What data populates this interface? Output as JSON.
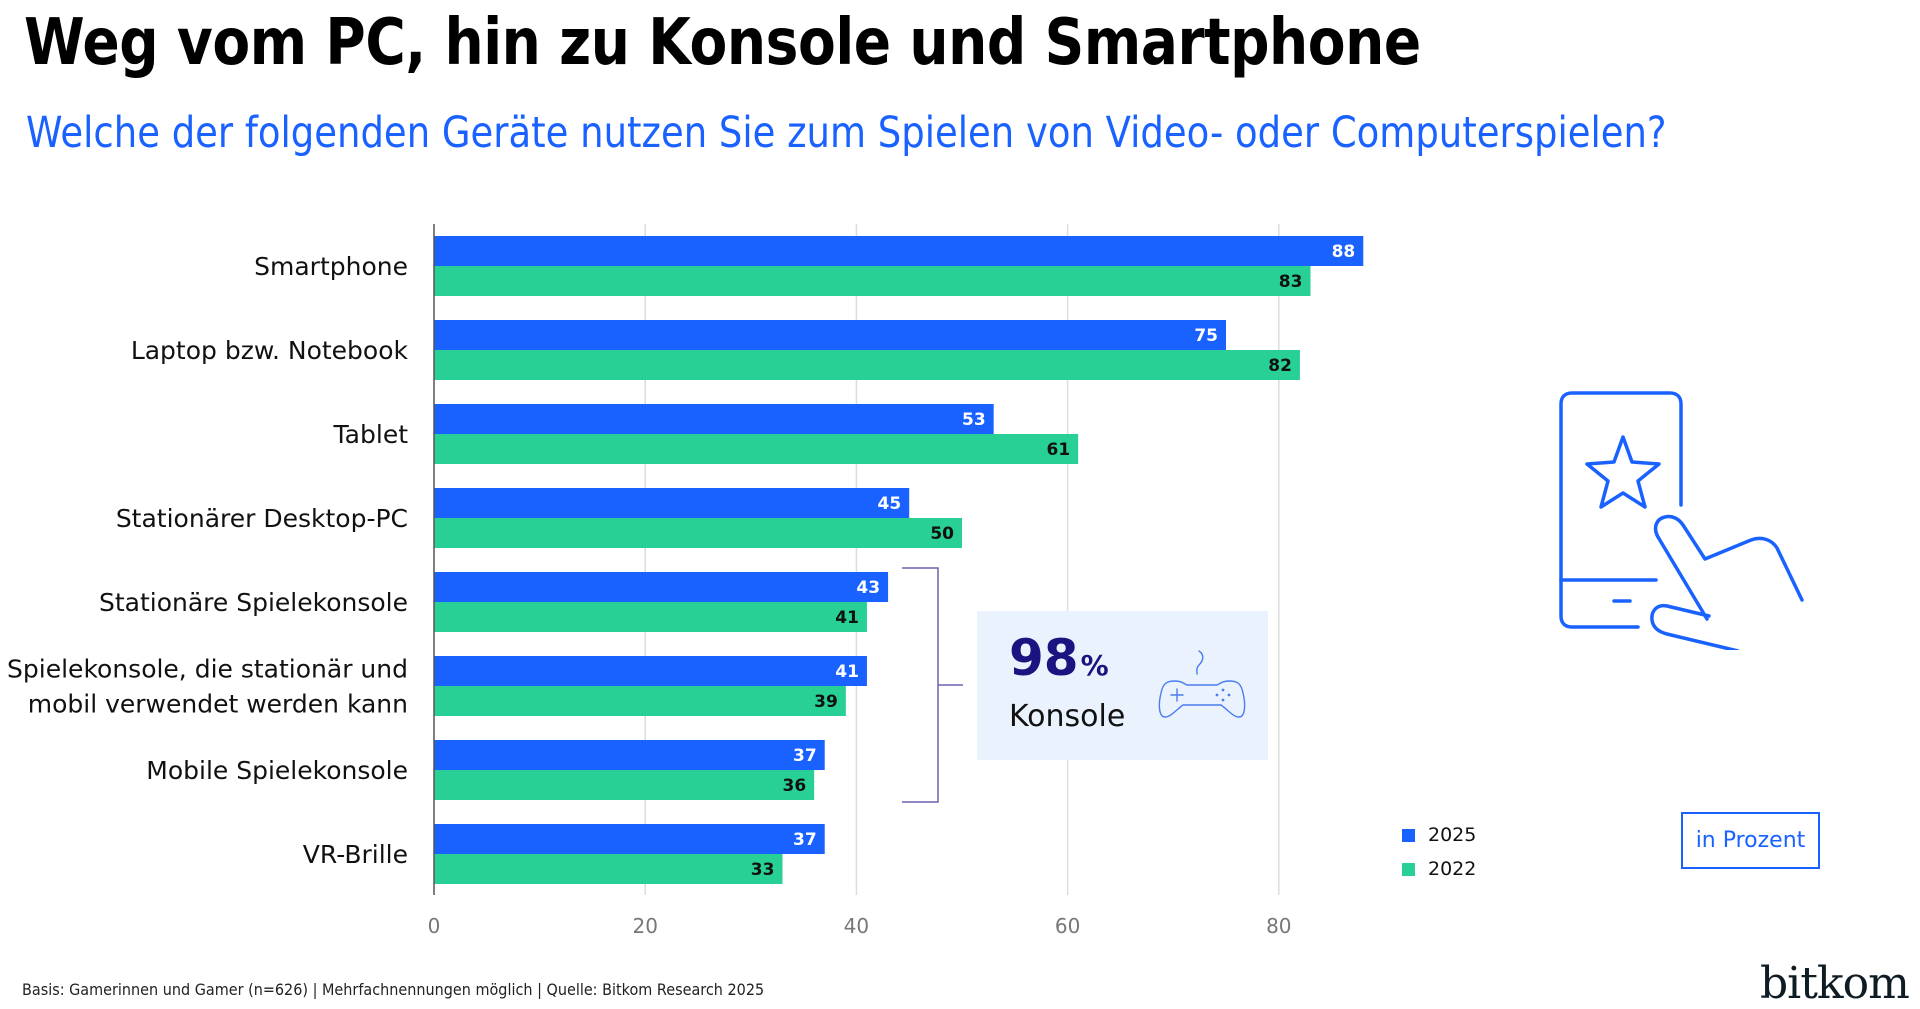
{
  "header": {
    "title": "Weg vom PC, hin zu Konsole und Smartphone",
    "subtitle": "Welche der folgenden Geräte nutzen Sie zum Spielen von Video- oder Computerspielen?"
  },
  "colors": {
    "series_2025": "#1a62ff",
    "series_2022": "#29d095",
    "accent": "#1a62ff",
    "highlight_dark": "#1a1380",
    "bracket": "#6b64b0",
    "callout_bg": "#eaf3fd",
    "gridline": "#dddddd"
  },
  "chart_data": {
    "type": "bar",
    "orientation": "horizontal",
    "title": "Weg vom PC, hin zu Konsole und Smartphone",
    "subtitle": "Welche der folgenden Geräte nutzen Sie zum Spielen von Video- oder Computerspielen?",
    "categories": [
      [
        "Smartphone"
      ],
      [
        "Laptop bzw. Notebook"
      ],
      [
        "Tablet"
      ],
      [
        "Stationärer Desktop-PC"
      ],
      [
        "Stationäre Spielekonsole"
      ],
      [
        "Spielekonsole, die stationär und",
        "mobil verwendet werden kann"
      ],
      [
        "Mobile Spielekonsole"
      ],
      [
        "VR-Brille"
      ]
    ],
    "series": [
      {
        "name": "2025",
        "values": [
          88,
          75,
          53,
          45,
          43,
          41,
          37,
          37
        ]
      },
      {
        "name": "2022",
        "values": [
          83,
          82,
          61,
          50,
          41,
          39,
          36,
          33
        ]
      }
    ],
    "xlabel": "",
    "ylabel": "",
    "xlim": [
      0,
      88
    ],
    "xticks": [
      0,
      20,
      40,
      60,
      80
    ],
    "grid": true,
    "legend_position": "bottom-right",
    "unit": "in Prozent",
    "annotation": {
      "bracket_categories": [
        4,
        5,
        6
      ],
      "value": "98",
      "value_suffix": "%",
      "label": "Konsole",
      "icon": "gamepad-icon"
    }
  },
  "legend": [
    {
      "label": "2025"
    },
    {
      "label": "2022"
    }
  ],
  "unit_label": "in Prozent",
  "footer": "Basis: Gamerinnen und Gamer (n=626) | Mehrfachnennungen möglich | Quelle: Bitkom Research 2025",
  "logo": "bitkom",
  "illustration": "smartphone-touch-star-icon"
}
